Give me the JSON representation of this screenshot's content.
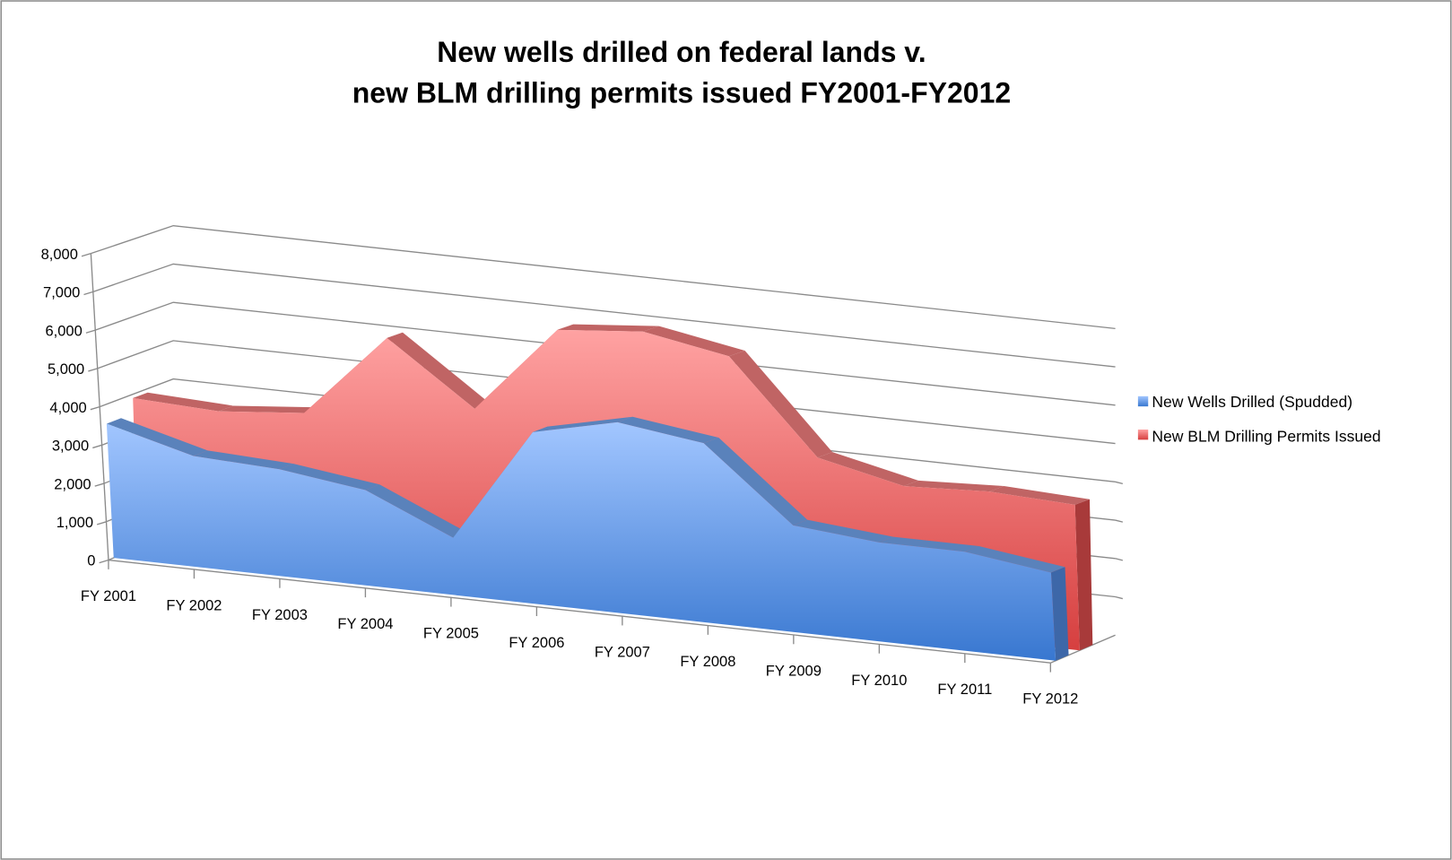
{
  "chart_data": {
    "type": "area",
    "subtype": "3d-area",
    "title": [
      "New wells drilled on federal lands v.",
      "new BLM drilling permits issued FY2001-FY2012"
    ],
    "categories": [
      "FY 2001",
      "FY 2002",
      "FY 2003",
      "FY 2004",
      "FY 2005",
      "FY 2006",
      "FY 2007",
      "FY 2008",
      "FY 2009",
      "FY 2010",
      "FY 2011",
      "FY 2012"
    ],
    "series": [
      {
        "name": "New Wells Drilled (Spudded)",
        "color": "#4f8de0",
        "values": [
          3500,
          2900,
          2800,
          2500,
          1500,
          4500,
          5000,
          4700,
          2800,
          2600,
          2600,
          2300
        ]
      },
      {
        "name": "New BLM Drilling Permits Issued",
        "color": "#e05a5a",
        "values": [
          3900,
          3800,
          4000,
          6200,
          4600,
          6900,
          7100,
          6700,
          4300,
          3800,
          3900,
          3800
        ]
      }
    ],
    "y_ticks": [
      "0",
      "1,000",
      "2,000",
      "3,000",
      "4,000",
      "5,000",
      "6,000",
      "7,000",
      "8,000"
    ],
    "ylim": [
      0,
      8000
    ],
    "grid": true,
    "legend_position": "right"
  }
}
